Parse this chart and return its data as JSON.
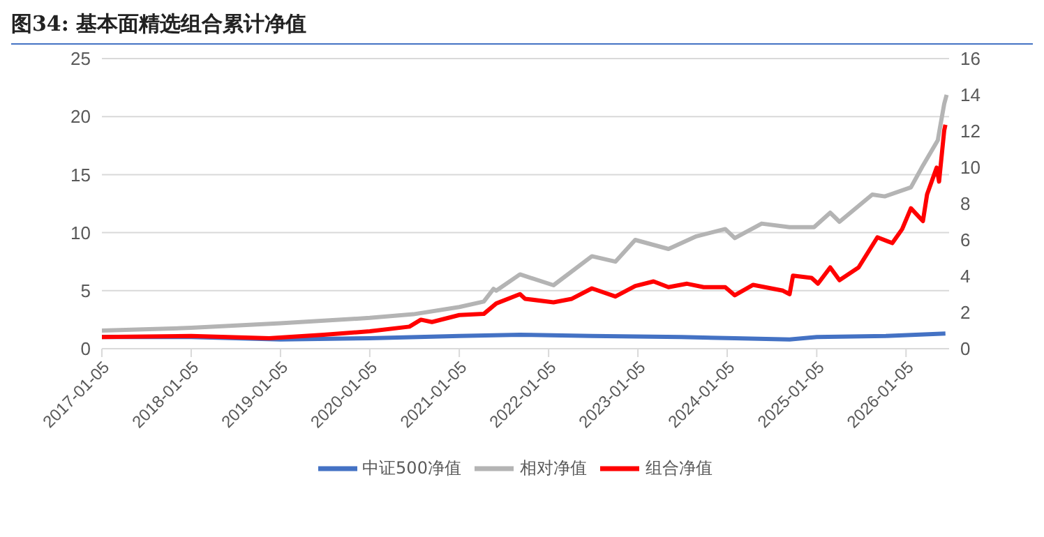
{
  "chart_data": {
    "type": "line",
    "title": "图34: 基本面精选组合累计净值",
    "xlim": [
      "2017-01-05",
      "2026-06-30"
    ],
    "xticks": [
      "2017-01-05",
      "2018-01-05",
      "2019-01-05",
      "2020-01-05",
      "2021-01-05",
      "2022-01-05",
      "2023-01-05",
      "2024-01-05",
      "2025-01-05",
      "2026-01-05"
    ],
    "ylim": [
      0,
      25
    ],
    "yticks": [
      0,
      5,
      10,
      15,
      20,
      25
    ],
    "y2lim": [
      0,
      16
    ],
    "y2ticks": [
      0,
      2,
      4,
      6,
      8,
      10,
      12,
      14,
      16
    ],
    "grid": "y",
    "legend": "bottom",
    "marker": "none",
    "line_style": "solid",
    "series": [
      {
        "name": "组合净值",
        "color": "#ff0000",
        "x": [
          "2017-01-05",
          "2018-01-05",
          "2018-11-20",
          "2019-07-01",
          "2020-01-05",
          "2020-06-15",
          "2020-08-01",
          "2020-09-15",
          "2021-01-05",
          "2021-04-15",
          "2021-06-05",
          "2021-09-10",
          "2021-10-01",
          "2022-01-25",
          "2022-04-10",
          "2022-07-01",
          "2022-10-05",
          "2022-12-25",
          "2023-03-10",
          "2023-05-10",
          "2023-07-25",
          "2023-10-01",
          "2023-12-28",
          "2024-02-05",
          "2024-04-20",
          "2024-08-20",
          "2024-09-16",
          "2024-09-30",
          "2024-12-15",
          "2025-01-10",
          "2025-03-01",
          "2025-04-08",
          "2025-06-25",
          "2025-09-10",
          "2025-11-10",
          "2025-12-20",
          "2026-01-25",
          "2026-03-15",
          "2026-04-01",
          "2026-05-10",
          "2026-05-20",
          "2026-06-10",
          "2026-06-15"
        ],
        "values": [
          1.0,
          1.1,
          0.9,
          1.2,
          1.5,
          1.9,
          2.5,
          2.3,
          2.9,
          3.0,
          3.9,
          4.7,
          4.3,
          4.0,
          4.3,
          5.2,
          4.5,
          5.4,
          5.8,
          5.3,
          5.6,
          5.3,
          5.3,
          4.6,
          5.5,
          5.0,
          4.7,
          6.3,
          6.1,
          5.6,
          7.0,
          5.9,
          7.0,
          9.6,
          9.1,
          10.3,
          12.1,
          11.0,
          13.3,
          15.6,
          14.4,
          18.8,
          19.3
        ]
      },
      {
        "name": "中证500净值",
        "color": "#4472c4",
        "x": [
          "2017-01-05",
          "2018-01-05",
          "2019-01-05",
          "2020-01-05",
          "2021-01-05",
          "2021-09-10",
          "2022-07-01",
          "2023-07-01",
          "2024-02-05",
          "2024-09-16",
          "2025-01-05",
          "2025-10-15",
          "2026-06-15"
        ],
        "values": [
          1.0,
          1.0,
          0.8,
          0.9,
          1.1,
          1.2,
          1.1,
          1.0,
          0.9,
          0.8,
          1.0,
          1.1,
          1.3
        ]
      },
      {
        "name": "相对净值",
        "color": "#b4b4b4",
        "axis": "y2",
        "x": [
          "2017-01-05",
          "2018-01-05",
          "2019-01-05",
          "2020-01-05",
          "2020-07-01",
          "2021-01-05",
          "2021-04-15",
          "2021-05-25",
          "2021-06-05",
          "2021-09-10",
          "2022-01-25",
          "2022-07-01",
          "2022-10-05",
          "2022-12-25",
          "2023-05-10",
          "2023-09-01",
          "2023-12-28",
          "2024-02-05",
          "2024-05-25",
          "2024-09-16",
          "2024-12-25",
          "2025-03-01",
          "2025-04-08",
          "2025-08-20",
          "2025-10-10",
          "2026-01-25",
          "2026-03-15",
          "2026-05-15",
          "2026-05-20",
          "2026-06-10",
          "2026-06-20"
        ],
        "values": [
          1.0,
          1.15,
          1.4,
          1.7,
          1.9,
          2.3,
          2.6,
          3.3,
          3.2,
          4.1,
          3.5,
          5.1,
          4.8,
          6.0,
          5.5,
          6.2,
          6.6,
          6.1,
          6.9,
          6.7,
          6.7,
          7.5,
          7.0,
          8.5,
          8.4,
          8.9,
          10.1,
          11.5,
          11.9,
          13.5,
          14.0
        ]
      }
    ]
  }
}
